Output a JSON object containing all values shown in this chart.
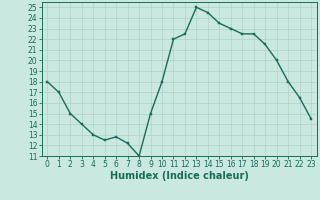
{
  "x": [
    0,
    1,
    2,
    3,
    4,
    5,
    6,
    7,
    8,
    9,
    10,
    11,
    12,
    13,
    14,
    15,
    16,
    17,
    18,
    19,
    20,
    21,
    22,
    23
  ],
  "y": [
    18,
    17,
    15,
    14,
    13,
    12.5,
    12.8,
    12.2,
    11,
    15,
    18,
    22,
    22.5,
    25,
    24.5,
    23.5,
    23,
    22.5,
    22.5,
    21.5,
    20,
    18,
    16.5,
    14.5
  ],
  "line_color": "#1a6b5a",
  "marker": "s",
  "marker_size": 1.8,
  "background_color": "#c8e8e0",
  "grid_color": "#b0d0c8",
  "xlabel": "Humidex (Indice chaleur)",
  "xlim": [
    -0.5,
    23.5
  ],
  "ylim": [
    11,
    25.5
  ],
  "yticks": [
    11,
    12,
    13,
    14,
    15,
    16,
    17,
    18,
    19,
    20,
    21,
    22,
    23,
    24,
    25
  ],
  "xticks": [
    0,
    1,
    2,
    3,
    4,
    5,
    6,
    7,
    8,
    9,
    10,
    11,
    12,
    13,
    14,
    15,
    16,
    17,
    18,
    19,
    20,
    21,
    22,
    23
  ],
  "tick_fontsize": 5.5,
  "label_fontsize": 7.0,
  "linewidth": 1.0
}
